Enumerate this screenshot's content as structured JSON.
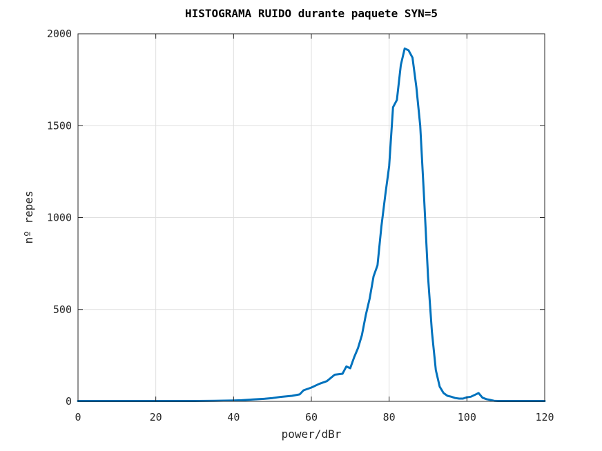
{
  "chart_data": {
    "type": "line",
    "title": "HISTOGRAMA RUIDO durante paquete SYN=5",
    "xlabel": "power/dBr",
    "ylabel": "nº repes",
    "xlim": [
      0,
      120
    ],
    "ylim": [
      0,
      2000
    ],
    "xticks": [
      0,
      20,
      40,
      60,
      80,
      100,
      120
    ],
    "yticks": [
      0,
      500,
      1000,
      1500,
      2000
    ],
    "grid": true,
    "line_color": "#0072BD",
    "series": [
      {
        "x": [
          0,
          10,
          20,
          30,
          35,
          40,
          42,
          45,
          48,
          50,
          52,
          55,
          57,
          58,
          60,
          62,
          64,
          66,
          68,
          69,
          70,
          71,
          72,
          73,
          74,
          75,
          76,
          77,
          78,
          79,
          80,
          81,
          82,
          83,
          84,
          85,
          86,
          87,
          88,
          89,
          90,
          91,
          92,
          93,
          94,
          95,
          96,
          97,
          98,
          99,
          100,
          101,
          102,
          103,
          104,
          105,
          106,
          107,
          108,
          110,
          115,
          120
        ],
        "y": [
          2,
          2,
          2,
          2,
          3,
          5,
          6,
          10,
          14,
          18,
          24,
          30,
          38,
          60,
          75,
          95,
          110,
          145,
          150,
          190,
          180,
          240,
          290,
          360,
          470,
          560,
          680,
          740,
          950,
          1120,
          1280,
          1600,
          1640,
          1830,
          1920,
          1910,
          1870,
          1710,
          1500,
          1100,
          680,
          380,
          170,
          80,
          45,
          30,
          25,
          18,
          15,
          15,
          22,
          25,
          35,
          45,
          20,
          12,
          8,
          3,
          2,
          2,
          2,
          2
        ]
      }
    ]
  }
}
